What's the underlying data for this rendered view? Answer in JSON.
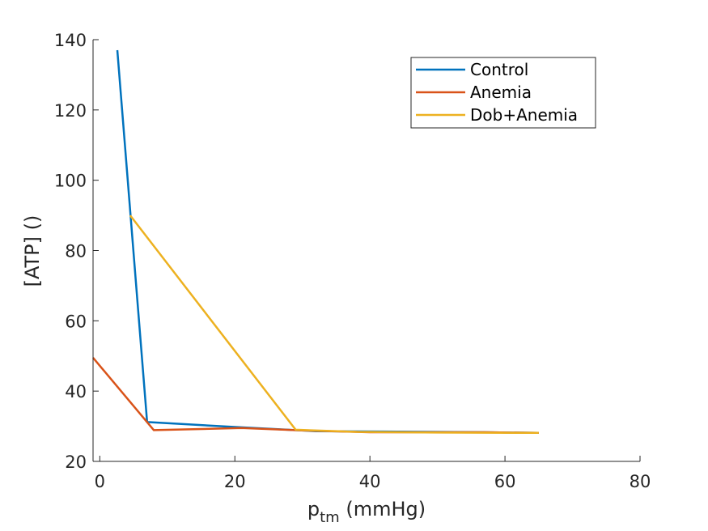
{
  "chart_data": {
    "type": "line",
    "title": "",
    "xlabel_main": "p",
    "xlabel_sub": "tm",
    "xlabel_unit": " (mmHg)",
    "ylabel": "[ATP] ()",
    "xlim": [
      -1,
      80
    ],
    "ylim": [
      20,
      140
    ],
    "xticks": [
      0,
      20,
      40,
      60,
      80
    ],
    "yticks": [
      20,
      40,
      60,
      80,
      100,
      120,
      140
    ],
    "grid": false,
    "legend_position": "top-right",
    "series": [
      {
        "name": "Control",
        "color": "#0072BD",
        "points": [
          [
            2.6,
            137
          ],
          [
            7.0,
            31.2
          ],
          [
            20,
            29.8
          ],
          [
            32,
            28.6
          ],
          [
            42,
            28.5
          ],
          [
            57,
            28.3
          ],
          [
            65,
            28.1
          ]
        ]
      },
      {
        "name": "Anemia",
        "color": "#D95319",
        "points": [
          [
            -1,
            49.5
          ],
          [
            8,
            28.9
          ],
          [
            21,
            29.5
          ],
          [
            30,
            28.8
          ],
          [
            40,
            28.3
          ],
          [
            57,
            28.3
          ],
          [
            65,
            28.1
          ]
        ]
      },
      {
        "name": "Dob+Anemia",
        "color": "#EDB120",
        "points": [
          [
            4.5,
            90.0
          ],
          [
            29,
            29.0
          ],
          [
            38,
            28.4
          ],
          [
            50,
            28.2
          ],
          [
            65,
            28.1
          ]
        ]
      }
    ]
  }
}
